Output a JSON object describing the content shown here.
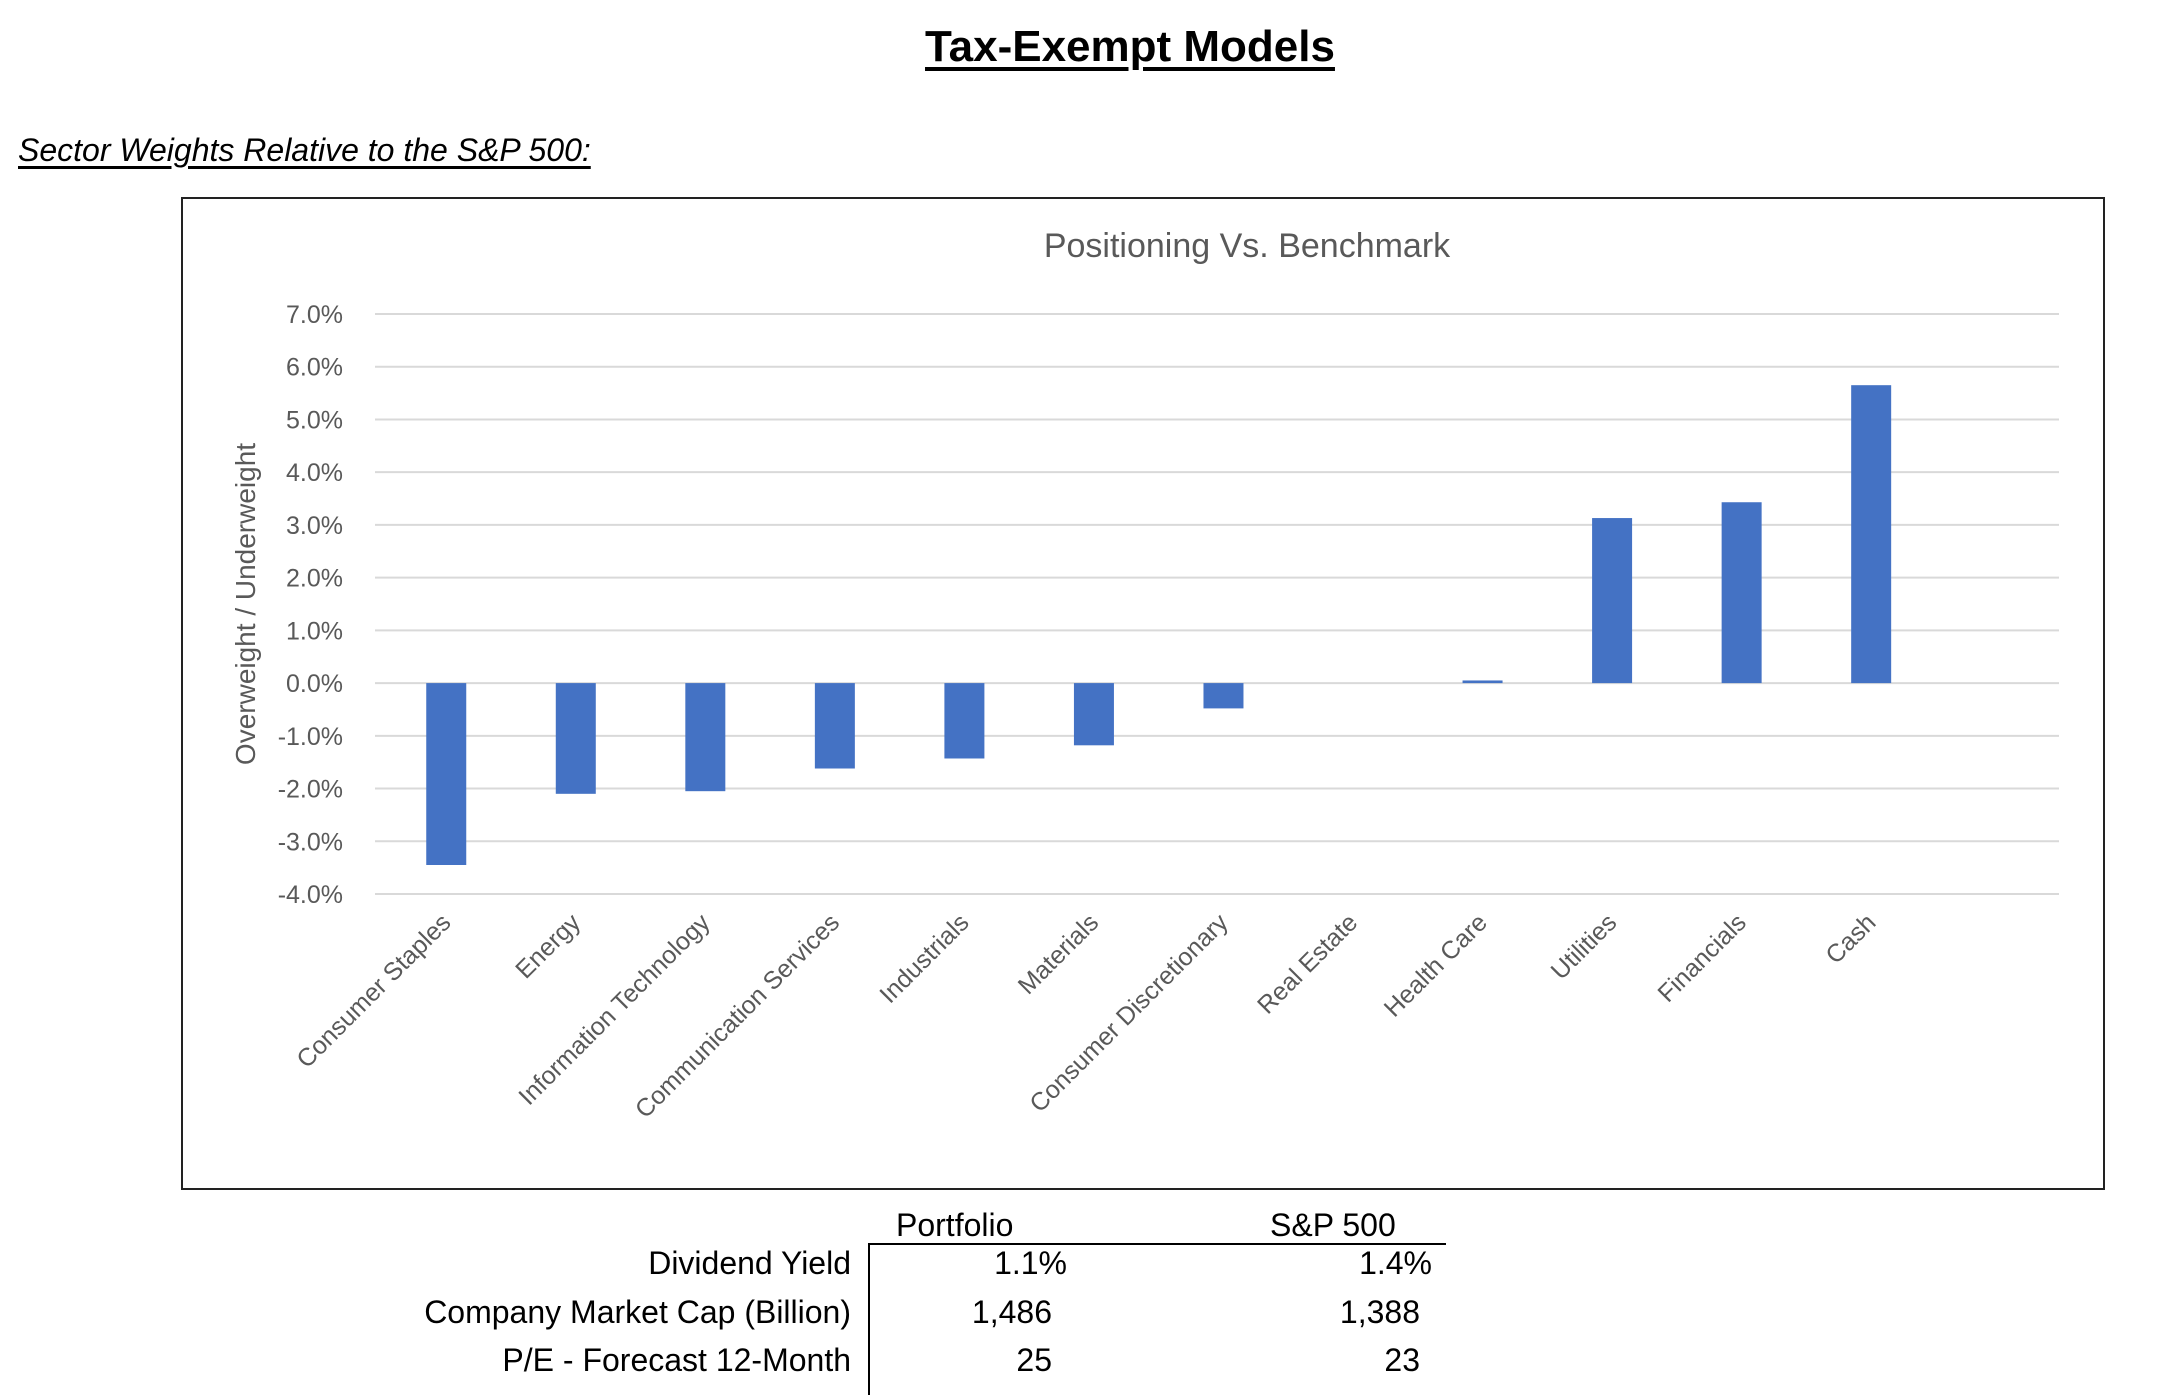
{
  "page": {
    "title": "Tax-Exempt Models",
    "section_title": "Sector Weights Relative to the S&P 500:"
  },
  "chart_data": {
    "type": "bar",
    "title": "Positioning Vs. Benchmark",
    "xlabel": "",
    "ylabel": "Overweight / Underweight",
    "ylim": [
      -4.0,
      7.0
    ],
    "y_ticks": [
      "7.0%",
      "6.0%",
      "5.0%",
      "4.0%",
      "3.0%",
      "2.0%",
      "1.0%",
      "0.0%",
      "-1.0%",
      "-2.0%",
      "-3.0%",
      "-4.0%"
    ],
    "y_tick_values": [
      7,
      6,
      5,
      4,
      3,
      2,
      1,
      0,
      -1,
      -2,
      -3,
      -4
    ],
    "categories": [
      "Consumer Staples",
      "Energy",
      "Information Technology",
      "Communication Services",
      "Industrials",
      "Materials",
      "Consumer Discretionary",
      "Real Estate",
      "Health Care",
      "Utilities",
      "Financials",
      "Cash"
    ],
    "values": [
      -3.45,
      -2.1,
      -2.05,
      -1.62,
      -1.43,
      -1.18,
      -0.48,
      0.0,
      0.05,
      3.13,
      3.43,
      5.65
    ],
    "grid": true,
    "legend": "none",
    "bar_color": "#4472C4",
    "grid_color": "#D9D9D9",
    "text_color": "#595959"
  },
  "stats": {
    "headers": [
      "Portfolio",
      "S&P 500"
    ],
    "rows": [
      {
        "label": "Dividend Yield",
        "portfolio": "1.1%",
        "sp500": "1.4%"
      },
      {
        "label": "Company Market Cap (Billion)",
        "portfolio": "1,486",
        "sp500": "1,388"
      },
      {
        "label": "P/E - Forecast 12-Month",
        "portfolio": "25",
        "sp500": "23"
      }
    ]
  }
}
